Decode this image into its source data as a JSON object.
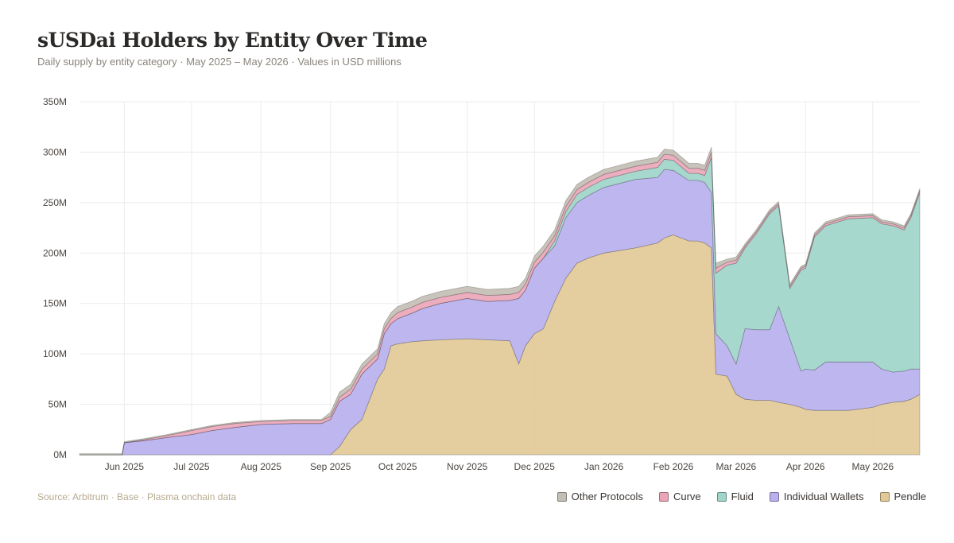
{
  "title": "sUSDai Holders by Entity Over Time",
  "subtitle": "Daily supply by entity category  ·  May 2025 – May 2026  ·  Values in USD millions",
  "source": "Source: Arbitrum · Base · Plasma onchain data",
  "chart_data": {
    "type": "area",
    "stacked": true,
    "xlabel": "",
    "ylabel": "",
    "ylim": [
      0,
      350
    ],
    "y_ticks": [
      0,
      50,
      100,
      150,
      200,
      250,
      300,
      350
    ],
    "y_tick_labels": [
      "0M",
      "50M",
      "100M",
      "150M",
      "200M",
      "250M",
      "300M",
      "350M"
    ],
    "xlim": [
      "2025-05-12",
      "2026-05-22"
    ],
    "x_ticks": [
      "2025-06-01",
      "2025-07-01",
      "2025-08-01",
      "2025-09-01",
      "2025-10-01",
      "2025-11-01",
      "2025-12-01",
      "2026-01-01",
      "2026-02-01",
      "2026-03-01",
      "2026-04-01",
      "2026-05-01"
    ],
    "x_tick_labels": [
      "Jun 2025",
      "Jul 2025",
      "Aug 2025",
      "Sep 2025",
      "Oct 2025",
      "Nov 2025",
      "Dec 2025",
      "Jan 2026",
      "Feb 2026",
      "Mar 2026",
      "Apr 2026",
      "May 2026"
    ],
    "grid": true,
    "legend_position": "bottom-right",
    "x": [
      "2025-05-12",
      "2025-05-31",
      "2025-06-01",
      "2025-06-10",
      "2025-06-20",
      "2025-07-01",
      "2025-07-10",
      "2025-07-20",
      "2025-08-01",
      "2025-08-15",
      "2025-08-25",
      "2025-08-28",
      "2025-09-01",
      "2025-09-05",
      "2025-09-10",
      "2025-09-15",
      "2025-09-22",
      "2025-09-25",
      "2025-09-28",
      "2025-10-01",
      "2025-10-07",
      "2025-10-12",
      "2025-10-20",
      "2025-11-01",
      "2025-11-10",
      "2025-11-20",
      "2025-11-24",
      "2025-11-27",
      "2025-12-01",
      "2025-12-05",
      "2025-12-10",
      "2025-12-15",
      "2025-12-20",
      "2025-12-25",
      "2026-01-01",
      "2026-01-15",
      "2026-01-25",
      "2026-01-28",
      "2026-02-01",
      "2026-02-08",
      "2026-02-12",
      "2026-02-15",
      "2026-02-18",
      "2026-02-20",
      "2026-02-25",
      "2026-03-01",
      "2026-03-05",
      "2026-03-10",
      "2026-03-16",
      "2026-03-20",
      "2026-03-25",
      "2026-03-30",
      "2026-04-01",
      "2026-04-05",
      "2026-04-10",
      "2026-04-20",
      "2026-05-01",
      "2026-05-05",
      "2026-05-10",
      "2026-05-15",
      "2026-05-18",
      "2026-05-22"
    ],
    "series": [
      {
        "name": "Pendle",
        "color": "#e2c997",
        "values": [
          0,
          0,
          0,
          0,
          0,
          0,
          0,
          0,
          0,
          0,
          0,
          0,
          0,
          8,
          25,
          35,
          75,
          85,
          108,
          110,
          112,
          113,
          114,
          115,
          114,
          113,
          90,
          108,
          120,
          125,
          152,
          175,
          190,
          195,
          200,
          205,
          210,
          215,
          218,
          212,
          212,
          210,
          205,
          80,
          78,
          60,
          55,
          54,
          54,
          52,
          50,
          47,
          45,
          44,
          44,
          44,
          47,
          50,
          52,
          53,
          55,
          60
        ]
      },
      {
        "name": "Individual Wallets",
        "color": "#b9b0ed",
        "values": [
          0,
          0,
          12,
          14,
          17,
          20,
          24,
          27,
          30,
          31,
          31,
          31,
          35,
          45,
          35,
          45,
          20,
          35,
          22,
          25,
          28,
          32,
          36,
          40,
          38,
          40,
          65,
          55,
          65,
          70,
          55,
          60,
          60,
          62,
          65,
          68,
          65,
          68,
          64,
          60,
          60,
          60,
          55,
          40,
          30,
          30,
          70,
          70,
          70,
          95,
          65,
          36,
          40,
          40,
          48,
          48,
          45,
          35,
          30,
          30,
          30,
          25
        ]
      },
      {
        "name": "Fluid",
        "color": "#a0d5c9",
        "values": [
          0,
          0,
          0,
          0,
          0,
          0,
          0,
          0,
          0,
          0,
          0,
          0,
          0,
          0,
          0,
          0,
          0,
          0,
          0,
          0,
          0,
          0,
          0,
          0,
          0,
          0,
          0,
          0,
          0,
          0,
          5,
          6,
          8,
          8,
          8,
          8,
          10,
          10,
          10,
          7,
          7,
          7,
          35,
          60,
          80,
          100,
          80,
          95,
          115,
          100,
          50,
          100,
          100,
          132,
          135,
          142,
          143,
          144,
          145,
          140,
          150,
          175
        ]
      },
      {
        "name": "Curve",
        "color": "#eaa6b8",
        "values": [
          0,
          0,
          0,
          1,
          2,
          4,
          4,
          4,
          3,
          3,
          3,
          3,
          3,
          4,
          5,
          5,
          5,
          5,
          5,
          6,
          6,
          6,
          6,
          6,
          6,
          6,
          6,
          6,
          6,
          6,
          5,
          5,
          5,
          5,
          5,
          5,
          5,
          5,
          5,
          5,
          5,
          5,
          5,
          5,
          3,
          3,
          2,
          2,
          2,
          2,
          2,
          2,
          2,
          2,
          2,
          2,
          2,
          2,
          2,
          2,
          2,
          2
        ]
      },
      {
        "name": "Other Protocols",
        "color": "#c3bfb5",
        "values": [
          1,
          1,
          1,
          1,
          1,
          1,
          1,
          1,
          1,
          1,
          1,
          1,
          4,
          5,
          5,
          5,
          5,
          5,
          6,
          6,
          6,
          6,
          6,
          6,
          6,
          6,
          6,
          6,
          6,
          6,
          6,
          6,
          5,
          5,
          5,
          5,
          5,
          5,
          5,
          5,
          5,
          5,
          5,
          5,
          3,
          3,
          2,
          2,
          2,
          2,
          2,
          2,
          2,
          2,
          2,
          2,
          2,
          2,
          2,
          2,
          2,
          2
        ]
      }
    ]
  },
  "legend": [
    {
      "label": "Other Protocols",
      "color": "#c3bfb5"
    },
    {
      "label": "Curve",
      "color": "#eaa6b8"
    },
    {
      "label": "Fluid",
      "color": "#a0d5c9"
    },
    {
      "label": "Individual Wallets",
      "color": "#b9b0ed"
    },
    {
      "label": "Pendle",
      "color": "#e2c997"
    }
  ]
}
